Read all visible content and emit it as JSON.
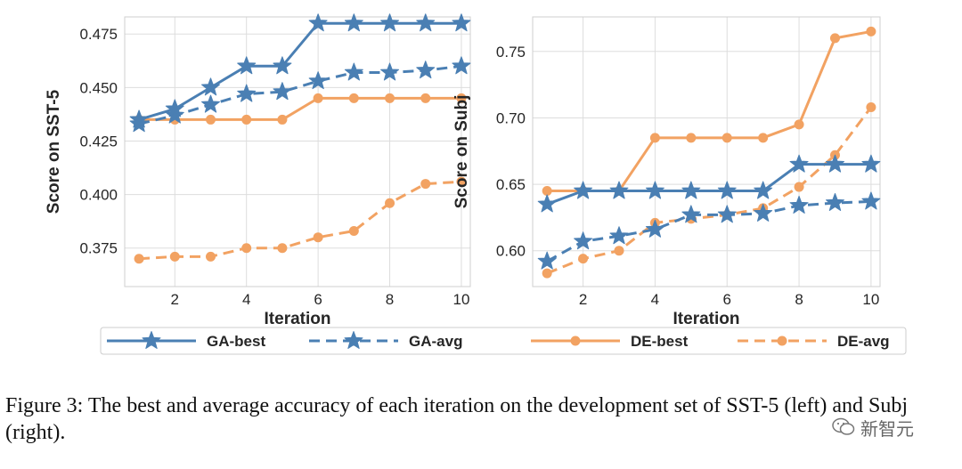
{
  "chart_data": [
    {
      "type": "line",
      "xlabel": "Iteration",
      "ylabel": "Score on SST-5",
      "x": [
        1,
        2,
        3,
        4,
        5,
        6,
        7,
        8,
        9,
        10
      ],
      "xlim": [
        0.6,
        10.25
      ],
      "ylim": [
        0.357,
        0.483
      ],
      "xticks": [
        2,
        4,
        6,
        8,
        10
      ],
      "yticks": [
        0.375,
        0.4,
        0.425,
        0.45,
        0.475
      ],
      "ytick_labels": [
        "0.375",
        "0.400",
        "0.425",
        "0.450",
        "0.475"
      ],
      "grid": true,
      "series": [
        {
          "name": "GA-best",
          "values": [
            0.435,
            0.44,
            0.45,
            0.46,
            0.46,
            0.48,
            0.48,
            0.48,
            0.48,
            0.48
          ]
        },
        {
          "name": "GA-avg",
          "values": [
            0.433,
            0.437,
            0.442,
            0.447,
            0.448,
            0.453,
            0.457,
            0.457,
            0.458,
            0.46
          ]
        },
        {
          "name": "DE-best",
          "values": [
            0.435,
            0.435,
            0.435,
            0.435,
            0.435,
            0.445,
            0.445,
            0.445,
            0.445,
            0.445
          ]
        },
        {
          "name": "DE-avg",
          "values": [
            0.37,
            0.371,
            0.371,
            0.375,
            0.375,
            0.38,
            0.383,
            0.396,
            0.405,
            0.406
          ]
        }
      ]
    },
    {
      "type": "line",
      "xlabel": "Iteration",
      "ylabel": "Score on Subj",
      "x": [
        1,
        2,
        3,
        4,
        5,
        6,
        7,
        8,
        9,
        10
      ],
      "xlim": [
        0.6,
        10.25
      ],
      "ylim": [
        0.573,
        0.776
      ],
      "xticks": [
        2,
        4,
        6,
        8,
        10
      ],
      "yticks": [
        0.6,
        0.65,
        0.7,
        0.75
      ],
      "ytick_labels": [
        "0.60",
        "0.65",
        "0.70",
        "0.75"
      ],
      "grid": true,
      "series": [
        {
          "name": "GA-best",
          "values": [
            0.635,
            0.645,
            0.645,
            0.645,
            0.645,
            0.645,
            0.645,
            0.665,
            0.665,
            0.665
          ]
        },
        {
          "name": "GA-avg",
          "values": [
            0.592,
            0.607,
            0.611,
            0.616,
            0.627,
            0.627,
            0.628,
            0.634,
            0.636,
            0.637
          ]
        },
        {
          "name": "DE-best",
          "values": [
            0.645,
            0.645,
            0.645,
            0.685,
            0.685,
            0.685,
            0.685,
            0.695,
            0.76,
            0.765
          ]
        },
        {
          "name": "DE-avg",
          "values": [
            0.583,
            0.594,
            0.6,
            0.621,
            0.624,
            0.627,
            0.632,
            0.648,
            0.672,
            0.708
          ]
        }
      ]
    }
  ],
  "series_style": [
    {
      "name": "GA-best",
      "color": "#4a7fb3",
      "dash": false,
      "marker": "star"
    },
    {
      "name": "GA-avg",
      "color": "#4a7fb3",
      "dash": true,
      "marker": "star"
    },
    {
      "name": "DE-best",
      "color": "#f2a262",
      "dash": false,
      "marker": "circle"
    },
    {
      "name": "DE-avg",
      "color": "#f2a262",
      "dash": true,
      "marker": "circle"
    }
  ],
  "legend": {
    "placement": "bottom",
    "items": [
      "GA-best",
      "GA-avg",
      "DE-best",
      "DE-avg"
    ]
  },
  "caption": "Figure 3: The best and average accuracy of each iteration on the development set of SST-5 (left) and Subj (right).",
  "watermark": {
    "text": "新智元",
    "icon": "wechat-icon"
  }
}
